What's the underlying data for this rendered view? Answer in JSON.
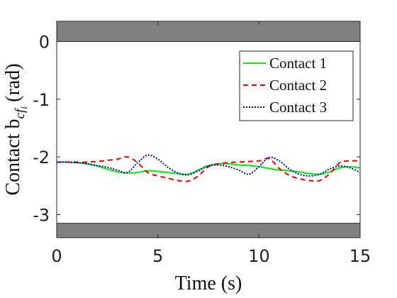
{
  "chart_data": {
    "type": "line",
    "xlabel": "Time (s)",
    "ylabel": "Contact b",
    "ylabel_subscript": "cf",
    "ylabel_subsubscript": "i",
    "ylabel_unit": "(rad)",
    "xlim": [
      0,
      15
    ],
    "ylim": [
      -3.4,
      0.35
    ],
    "xticks": [
      0,
      5,
      10,
      15
    ],
    "xtick_labels": [
      "0",
      "5",
      "10",
      "15"
    ],
    "yticks": [
      0,
      -1,
      -2,
      -3
    ],
    "ytick_labels": [
      "0",
      "-1",
      "-2",
      "-3"
    ],
    "grid": false,
    "legend_position": "top-right",
    "bands": [
      {
        "from": 0,
        "to": 0.35,
        "color": "#808080"
      },
      {
        "from": -3.4,
        "to": -3.15,
        "color": "#808080"
      }
    ],
    "series": [
      {
        "name": "Contact 1",
        "color": "#00ee00",
        "dash": "solid",
        "x": [
          0,
          0.5,
          1,
          1.5,
          2,
          2.5,
          3,
          3.5,
          4,
          4.5,
          5,
          5.5,
          6,
          6.5,
          7,
          7.5,
          8,
          8.5,
          9,
          9.5,
          10,
          10.5,
          11,
          11.5,
          12,
          12.5,
          13,
          13.5,
          14,
          14.5,
          15
        ],
        "values": [
          -2.09,
          -2.09,
          -2.1,
          -2.12,
          -2.16,
          -2.21,
          -2.26,
          -2.28,
          -2.27,
          -2.24,
          -2.25,
          -2.27,
          -2.29,
          -2.3,
          -2.23,
          -2.15,
          -2.12,
          -2.12,
          -2.14,
          -2.15,
          -2.17,
          -2.2,
          -2.23,
          -2.24,
          -2.26,
          -2.29,
          -2.3,
          -2.26,
          -2.19,
          -2.17,
          -2.19
        ]
      },
      {
        "name": "Contact 2",
        "color": "#ee0000",
        "dash": "dashed",
        "x": [
          0,
          0.5,
          1,
          1.5,
          2,
          2.5,
          3,
          3.5,
          4,
          4.5,
          5,
          5.5,
          6,
          6.5,
          7,
          7.5,
          8,
          8.5,
          9,
          9.5,
          10,
          10.5,
          11,
          11.5,
          12,
          12.5,
          13,
          13.5,
          14,
          14.5,
          15
        ],
        "values": [
          -2.09,
          -2.09,
          -2.09,
          -2.09,
          -2.08,
          -2.06,
          -2.04,
          -2.0,
          -2.1,
          -2.27,
          -2.33,
          -2.37,
          -2.41,
          -2.42,
          -2.33,
          -2.17,
          -2.12,
          -2.1,
          -2.09,
          -2.08,
          -2.07,
          -2.03,
          -2.2,
          -2.32,
          -2.38,
          -2.41,
          -2.41,
          -2.29,
          -2.1,
          -2.07,
          -2.07
        ]
      },
      {
        "name": "Contact 3",
        "color": "#0000cc",
        "dash": "dotted",
        "x": [
          0,
          0.5,
          1,
          1.5,
          2,
          2.5,
          3,
          3.5,
          4,
          4.5,
          5,
          5.5,
          6,
          6.5,
          7,
          7.5,
          8,
          8.5,
          9,
          9.5,
          10,
          10.5,
          11,
          11.5,
          12,
          12.5,
          13,
          13.5,
          14,
          14.5,
          15
        ],
        "values": [
          -2.09,
          -2.09,
          -2.1,
          -2.12,
          -2.15,
          -2.18,
          -2.23,
          -2.27,
          -2.1,
          -1.97,
          -2.04,
          -2.18,
          -2.28,
          -2.31,
          -2.24,
          -2.16,
          -2.14,
          -2.17,
          -2.23,
          -2.3,
          -2.17,
          -2.01,
          -2.07,
          -2.21,
          -2.3,
          -2.33,
          -2.3,
          -2.21,
          -2.16,
          -2.19,
          -2.27
        ]
      }
    ]
  }
}
